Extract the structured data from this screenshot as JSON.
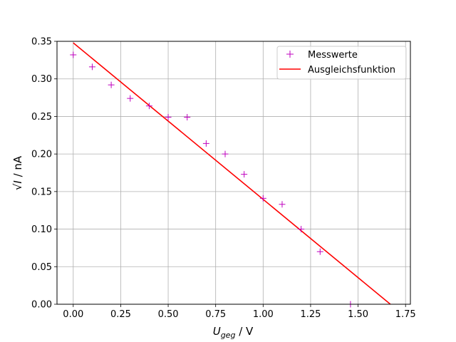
{
  "chart_data": {
    "type": "scatter",
    "xlabel": "U_geg / V",
    "ylabel": "√I / nA",
    "xlim": [
      -0.0855,
      1.7755
    ],
    "ylim": [
      0,
      0.35
    ],
    "xticks": [
      0.0,
      0.25,
      0.5,
      0.75,
      1.0,
      1.25,
      1.5,
      1.75
    ],
    "xtick_labels": [
      "0.00",
      "0.25",
      "0.50",
      "0.75",
      "1.00",
      "1.25",
      "1.50",
      "1.75"
    ],
    "yticks": [
      0.0,
      0.05,
      0.1,
      0.15,
      0.2,
      0.25,
      0.3,
      0.35
    ],
    "ytick_labels": [
      "0.00",
      "0.05",
      "0.10",
      "0.15",
      "0.20",
      "0.25",
      "0.30",
      "0.35"
    ],
    "grid": true,
    "legend_position": "top-right",
    "series": [
      {
        "name": "Messwerte",
        "kind": "scatter",
        "marker": "+",
        "color": "#bf00bf",
        "x": [
          0.0,
          0.1,
          0.2,
          0.3,
          0.4,
          0.5,
          0.6,
          0.7,
          0.8,
          0.9,
          1.0,
          1.1,
          1.2,
          1.3,
          1.46
        ],
        "y": [
          0.332,
          0.316,
          0.292,
          0.274,
          0.264,
          0.249,
          0.249,
          0.214,
          0.2,
          0.173,
          0.141,
          0.133,
          0.1,
          0.07,
          0.0
        ]
      },
      {
        "name": "Ausgleichsfunktion",
        "kind": "line",
        "color": "#ff0000",
        "x": [
          0.0,
          1.67
        ],
        "y": [
          0.348,
          0.0
        ]
      }
    ]
  }
}
